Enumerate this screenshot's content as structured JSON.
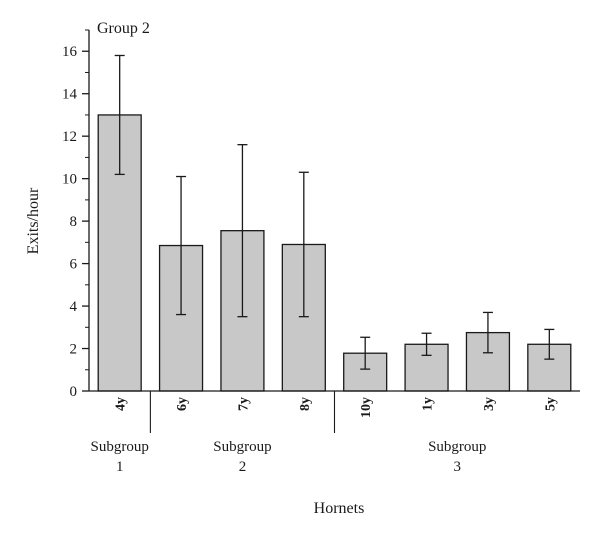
{
  "chart_data": {
    "type": "bar",
    "title": "Group 2",
    "xlabel": "Hornets",
    "ylabel": "Exits/hour",
    "ylim": [
      0,
      17
    ],
    "yticks": [
      0,
      2,
      4,
      6,
      8,
      10,
      12,
      14,
      16
    ],
    "categories": [
      "4y",
      "6y",
      "7y",
      "8y",
      "10y",
      "1y",
      "3y",
      "5y"
    ],
    "values": [
      13.0,
      6.85,
      7.55,
      6.9,
      1.78,
      2.2,
      2.75,
      2.2
    ],
    "errors": [
      2.8,
      3.25,
      4.05,
      3.4,
      0.75,
      0.52,
      0.95,
      0.7
    ],
    "subgroups": [
      {
        "line1": "Subgroup",
        "line2": "1",
        "categories": [
          "4y"
        ]
      },
      {
        "line1": "Subgroup",
        "line2": "2",
        "categories": [
          "6y",
          "7y",
          "8y"
        ]
      },
      {
        "line1": "Subgroup",
        "line2": "3",
        "categories": [
          "10y",
          "1y",
          "3y",
          "5y"
        ]
      }
    ],
    "bar_color": "#c8c8c8",
    "grid": false
  }
}
